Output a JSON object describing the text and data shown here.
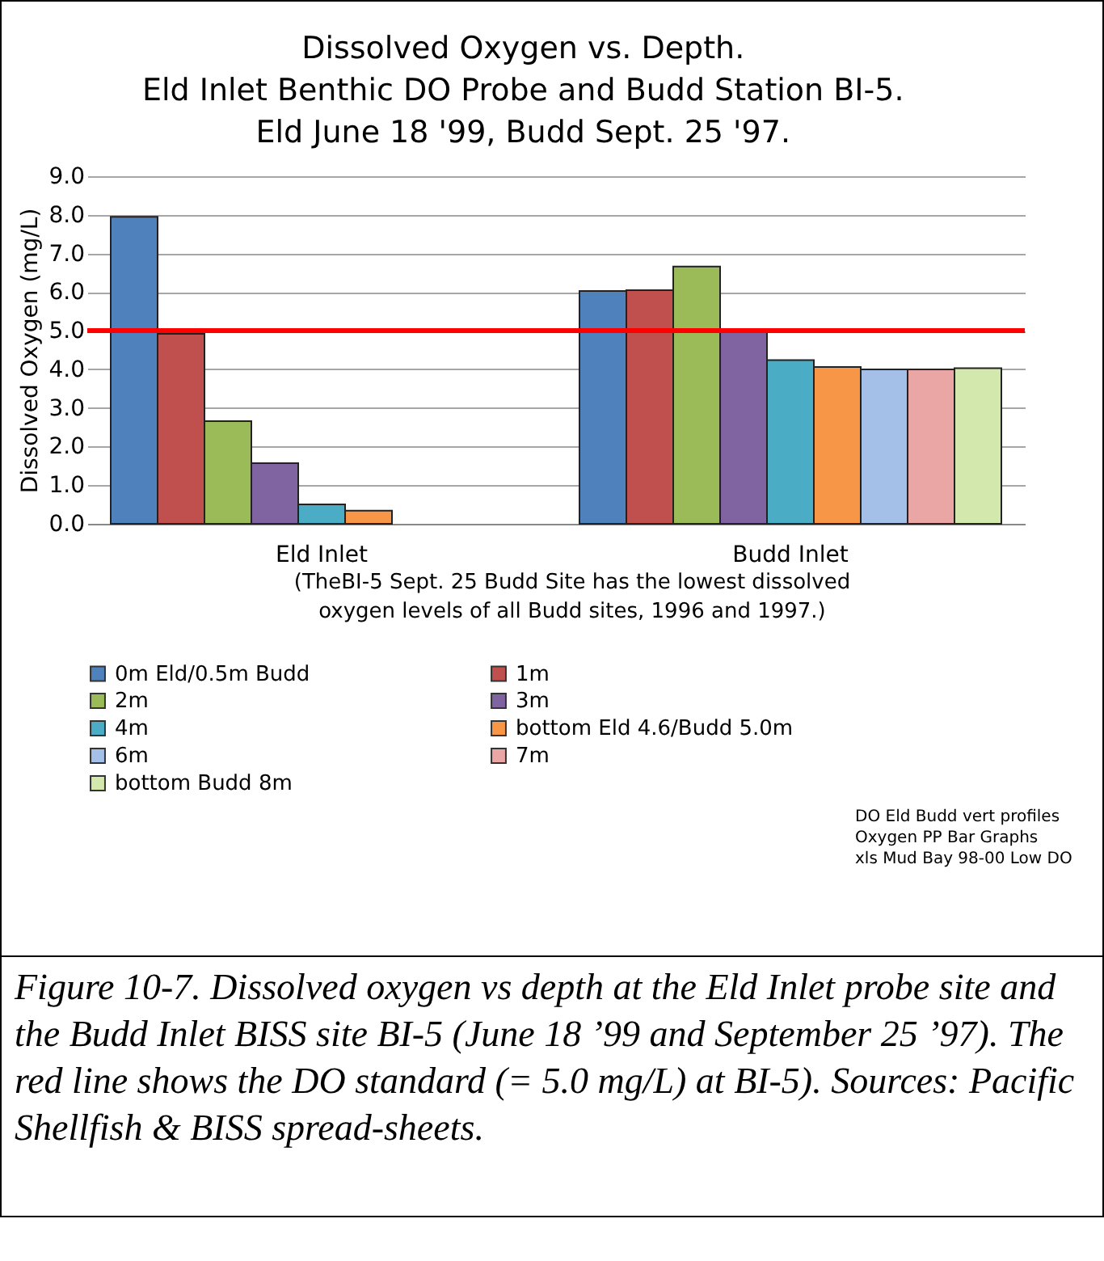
{
  "chart_data": {
    "type": "bar",
    "title": "Dissolved Oxygen vs. Depth.\nEld Inlet Benthic DO Probe and Budd Station BI-5.\nEld June 18 '99, Budd Sept. 25 '97.",
    "ylabel": "Dissolved Oxygen (mg/L)",
    "categories": [
      "Eld Inlet",
      "Budd Inlet"
    ],
    "series": [
      {
        "name": "0m Eld/0.5m Budd",
        "color": "#4f81bd",
        "values": [
          7.95,
          6.03
        ]
      },
      {
        "name": "1m",
        "color": "#c0504d",
        "values": [
          4.92,
          6.05
        ]
      },
      {
        "name": "2m",
        "color": "#9bbb59",
        "values": [
          2.66,
          6.66
        ]
      },
      {
        "name": "3m",
        "color": "#8064a2",
        "values": [
          1.57,
          5.03
        ]
      },
      {
        "name": "4m",
        "color": "#4bacc6",
        "values": [
          0.5,
          4.24
        ]
      },
      {
        "name": "bottom Eld 4.6/Budd 5.0m",
        "color": "#f79646",
        "values": [
          0.34,
          4.06
        ]
      },
      {
        "name": "6m",
        "color": "#a5c0e8",
        "values": [
          null,
          4.0
        ]
      },
      {
        "name": "7m",
        "color": "#eaa5a5",
        "values": [
          null,
          4.0
        ]
      },
      {
        "name": "bottom Budd 8m",
        "color": "#d3e8ad",
        "values": [
          null,
          4.03
        ]
      }
    ],
    "ylim": [
      0,
      9
    ],
    "yticks": [
      {
        "value": 0,
        "label": "0.0"
      },
      {
        "value": 1,
        "label": "1.0"
      },
      {
        "value": 2,
        "label": "2.0"
      },
      {
        "value": 3,
        "label": "3.0"
      },
      {
        "value": 4,
        "label": "4.0"
      },
      {
        "value": 5,
        "label": "5.0"
      },
      {
        "value": 6,
        "label": "6.0"
      },
      {
        "value": 7,
        "label": "7.0"
      },
      {
        "value": 8,
        "label": "8.0"
      },
      {
        "value": 9,
        "label": "9.0"
      }
    ],
    "grid": "y",
    "legend": "bottom",
    "ref_lines": [
      {
        "axis": "y",
        "value": 5.0,
        "color": "#ff0000"
      }
    ],
    "annotations": [
      "(TheBI-5 Sept. 25 Budd Site has the lowest dissolved\noxygen levels of all Budd sites, 1996 and 1997.)",
      "DO Eld Budd vert profiles\nOxygen PP Bar Graphs\nxls Mud Bay 98-00 Low DO",
      "Figure 10-7.  Dissolved oxygen vs depth at the Eld Inlet probe site and the Budd Inlet BISS site BI-5 (June 18 ’99 and September 25 ’97).  The red line shows the DO standard (= 5.0 mg/L) at BI-5).  Sources: Pacific Shellfish & BISS spread-sheets."
    ]
  }
}
